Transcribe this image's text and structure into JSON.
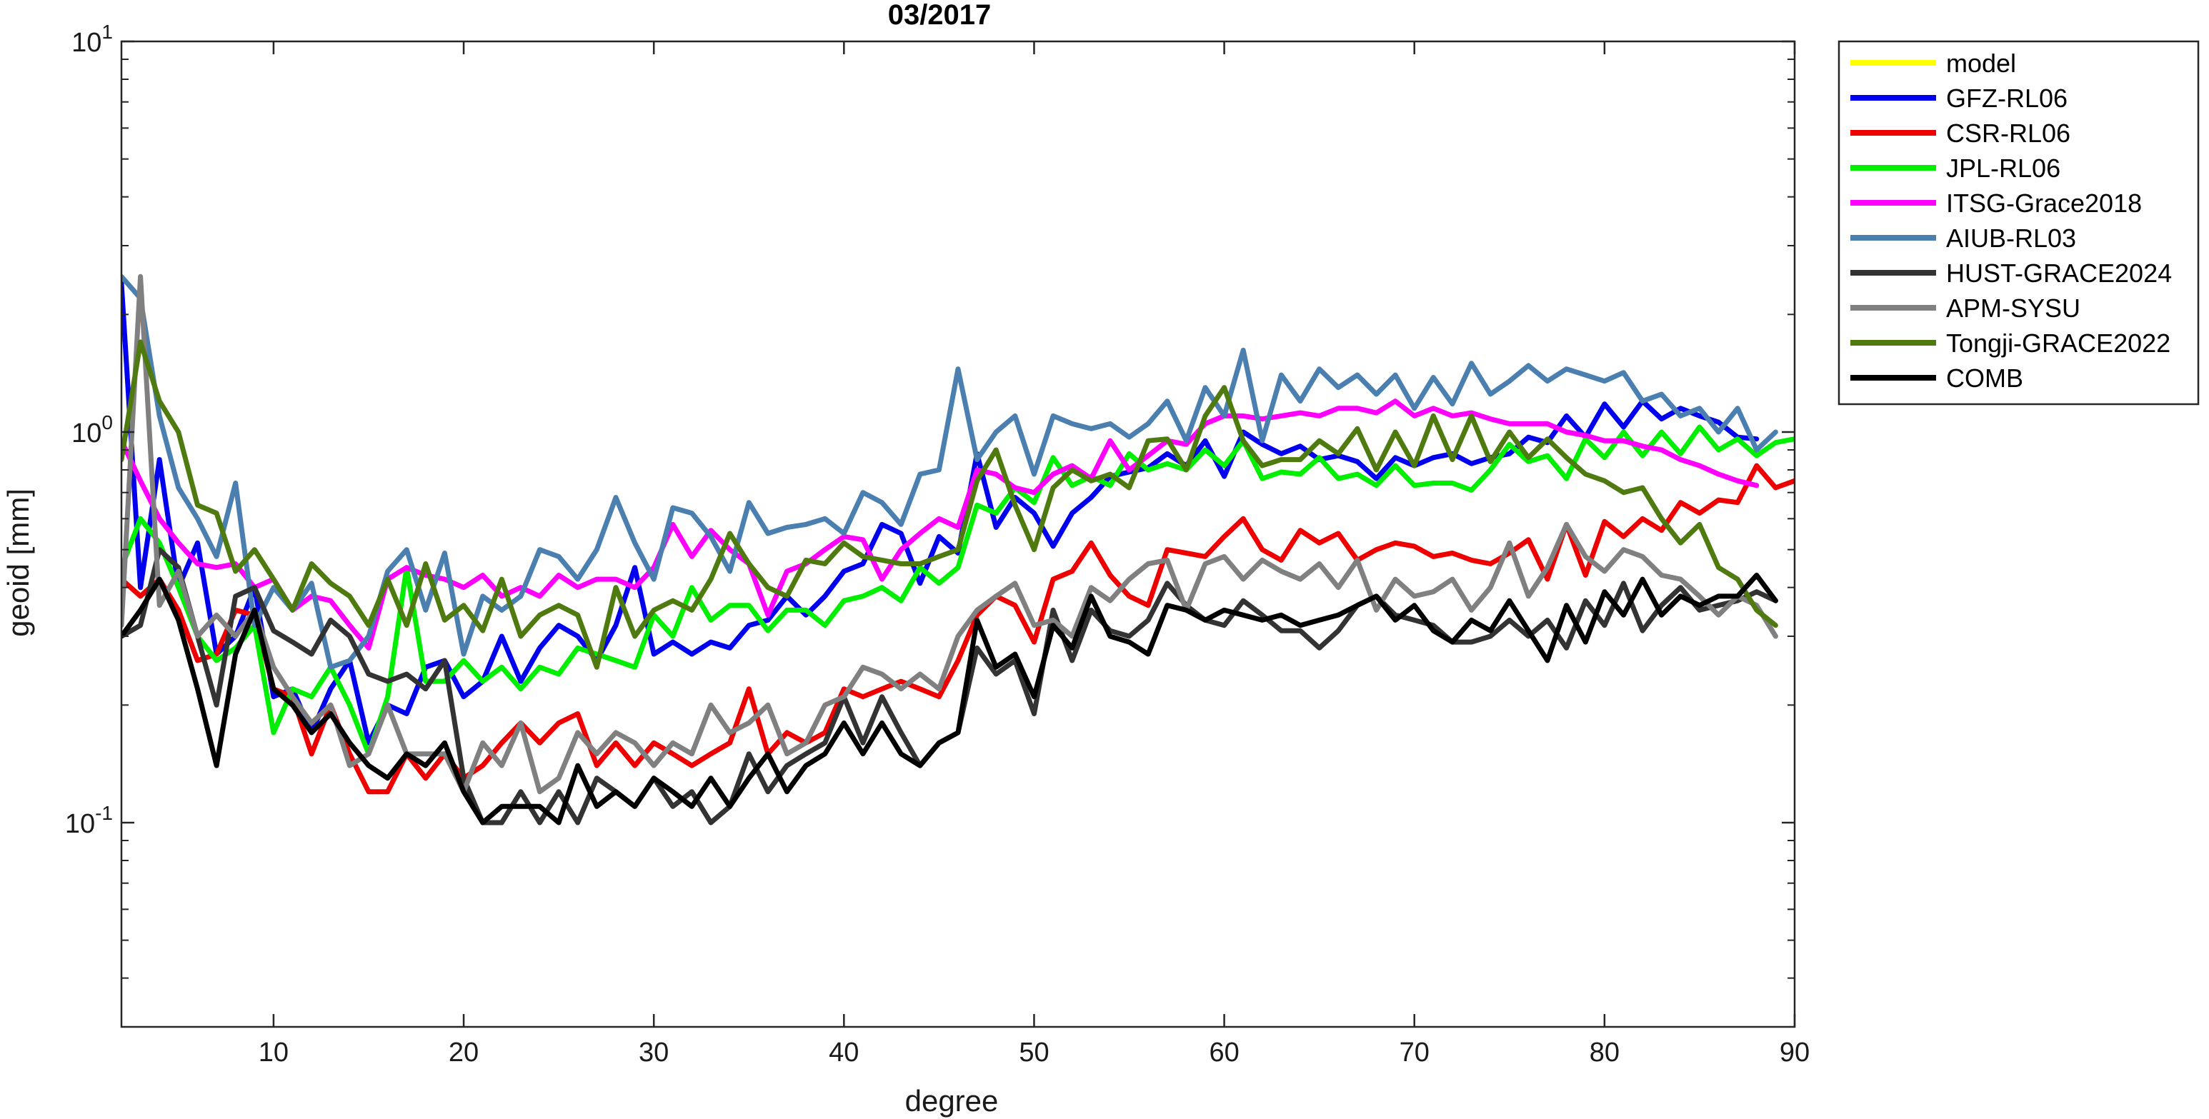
{
  "chart_data": {
    "type": "line",
    "title": "03/2017",
    "xlabel": "degree",
    "ylabel": "geoid [mm]",
    "xlim": [
      2,
      90
    ],
    "ylim": [
      0.03,
      10
    ],
    "yscale": "log",
    "x_ticks": [
      10,
      20,
      30,
      40,
      50,
      60,
      70,
      80,
      90
    ],
    "x_tick_labels": [
      "10",
      "20",
      "30",
      "40",
      "50",
      "60",
      "70",
      "80",
      "90"
    ],
    "y_ticks": [
      {
        "value": 10,
        "base": "10",
        "exp": "1"
      },
      {
        "value": 1,
        "base": "10",
        "exp": "0"
      },
      {
        "value": 0.1,
        "base": "10",
        "exp": "-1"
      }
    ],
    "grid": false,
    "legend_position": "outside-top-right",
    "series": [
      {
        "name": "model",
        "color": "#ffff00",
        "y": []
      },
      {
        "name": "GFZ-RL06",
        "color": "#0000ee",
        "y": [
          2.4,
          0.4,
          0.85,
          0.4,
          0.52,
          0.27,
          0.3,
          0.4,
          0.21,
          0.22,
          0.17,
          0.22,
          0.26,
          0.16,
          0.2,
          0.19,
          0.25,
          0.26,
          0.21,
          0.23,
          0.3,
          0.23,
          0.28,
          0.32,
          0.3,
          0.26,
          0.32,
          0.45,
          0.27,
          0.29,
          0.27,
          0.29,
          0.28,
          0.32,
          0.33,
          0.38,
          0.34,
          0.38,
          0.44,
          0.46,
          0.58,
          0.55,
          0.41,
          0.54,
          0.49,
          0.88,
          0.57,
          0.68,
          0.62,
          0.51,
          0.62,
          0.68,
          0.77,
          0.79,
          0.81,
          0.88,
          0.82,
          0.95,
          0.77,
          1.0,
          0.93,
          0.88,
          0.92,
          0.85,
          0.87,
          0.84,
          0.76,
          0.86,
          0.82,
          0.86,
          0.88,
          0.83,
          0.86,
          0.88,
          0.97,
          0.94,
          1.1,
          0.97,
          1.18,
          1.03,
          1.2,
          1.08,
          1.15,
          1.1,
          1.06,
          0.97,
          0.96
        ]
      },
      {
        "name": "CSR-RL06",
        "color": "#ee0000",
        "y": [
          0.42,
          0.38,
          0.42,
          0.35,
          0.26,
          0.27,
          0.35,
          0.34,
          0.22,
          0.21,
          0.15,
          0.2,
          0.15,
          0.12,
          0.12,
          0.15,
          0.13,
          0.15,
          0.13,
          0.14,
          0.16,
          0.18,
          0.16,
          0.18,
          0.19,
          0.14,
          0.16,
          0.14,
          0.16,
          0.15,
          0.14,
          0.15,
          0.16,
          0.22,
          0.15,
          0.17,
          0.16,
          0.17,
          0.22,
          0.21,
          0.22,
          0.23,
          0.22,
          0.21,
          0.26,
          0.34,
          0.38,
          0.36,
          0.29,
          0.42,
          0.44,
          0.52,
          0.43,
          0.38,
          0.36,
          0.5,
          0.49,
          0.48,
          0.54,
          0.6,
          0.5,
          0.47,
          0.56,
          0.52,
          0.55,
          0.47,
          0.5,
          0.52,
          0.51,
          0.48,
          0.49,
          0.47,
          0.46,
          0.49,
          0.53,
          0.42,
          0.58,
          0.43,
          0.59,
          0.54,
          0.6,
          0.56,
          0.66,
          0.62,
          0.67,
          0.66,
          0.82,
          0.72,
          0.75
        ]
      },
      {
        "name": "JPL-RL06",
        "color": "#00ee00",
        "y": [
          0.45,
          0.6,
          0.52,
          0.4,
          0.3,
          0.26,
          0.28,
          0.32,
          0.17,
          0.22,
          0.21,
          0.25,
          0.2,
          0.15,
          0.21,
          0.45,
          0.23,
          0.23,
          0.26,
          0.23,
          0.25,
          0.22,
          0.25,
          0.24,
          0.28,
          0.27,
          0.26,
          0.25,
          0.34,
          0.3,
          0.4,
          0.33,
          0.36,
          0.36,
          0.31,
          0.35,
          0.35,
          0.32,
          0.37,
          0.38,
          0.4,
          0.37,
          0.45,
          0.41,
          0.45,
          0.65,
          0.62,
          0.72,
          0.66,
          0.86,
          0.73,
          0.77,
          0.73,
          0.88,
          0.8,
          0.83,
          0.8,
          0.9,
          0.82,
          0.95,
          0.76,
          0.79,
          0.78,
          0.86,
          0.76,
          0.78,
          0.73,
          0.82,
          0.73,
          0.74,
          0.74,
          0.71,
          0.8,
          0.93,
          0.84,
          0.87,
          0.76,
          0.96,
          0.86,
          1.0,
          0.87,
          1.0,
          0.88,
          1.03,
          0.9,
          0.96,
          0.87,
          0.94,
          0.96
        ]
      },
      {
        "name": "ITSG-Grace2018",
        "color": "#ff00ff",
        "y": [
          0.95,
          0.75,
          0.6,
          0.52,
          0.46,
          0.45,
          0.46,
          0.4,
          0.42,
          0.35,
          0.38,
          0.37,
          0.32,
          0.28,
          0.42,
          0.45,
          0.43,
          0.42,
          0.4,
          0.43,
          0.38,
          0.4,
          0.38,
          0.43,
          0.4,
          0.42,
          0.42,
          0.4,
          0.45,
          0.58,
          0.48,
          0.56,
          0.5,
          0.46,
          0.34,
          0.44,
          0.46,
          0.5,
          0.54,
          0.53,
          0.42,
          0.5,
          0.55,
          0.6,
          0.57,
          0.8,
          0.78,
          0.72,
          0.7,
          0.78,
          0.82,
          0.76,
          0.95,
          0.8,
          0.87,
          0.95,
          0.93,
          1.05,
          1.1,
          1.1,
          1.08,
          1.1,
          1.12,
          1.1,
          1.15,
          1.15,
          1.12,
          1.2,
          1.1,
          1.15,
          1.1,
          1.12,
          1.08,
          1.05,
          1.05,
          1.05,
          1.0,
          0.98,
          0.95,
          0.95,
          0.92,
          0.9,
          0.85,
          0.82,
          0.78,
          0.75,
          0.73
        ]
      },
      {
        "name": "AIUB-RL03",
        "color": "#4a7fb0",
        "y": [
          2.5,
          2.2,
          1.1,
          0.72,
          0.6,
          0.48,
          0.74,
          0.32,
          0.4,
          0.35,
          0.41,
          0.25,
          0.26,
          0.3,
          0.44,
          0.5,
          0.35,
          0.49,
          0.27,
          0.38,
          0.35,
          0.38,
          0.5,
          0.48,
          0.42,
          0.5,
          0.68,
          0.52,
          0.42,
          0.64,
          0.62,
          0.54,
          0.44,
          0.66,
          0.55,
          0.57,
          0.58,
          0.6,
          0.55,
          0.7,
          0.66,
          0.58,
          0.78,
          0.8,
          1.45,
          0.85,
          1.0,
          1.1,
          0.78,
          1.1,
          1.05,
          1.02,
          1.05,
          0.97,
          1.05,
          1.2,
          0.95,
          1.3,
          1.1,
          1.62,
          0.95,
          1.4,
          1.2,
          1.45,
          1.3,
          1.4,
          1.25,
          1.4,
          1.15,
          1.38,
          1.18,
          1.5,
          1.25,
          1.35,
          1.48,
          1.35,
          1.45,
          1.4,
          1.35,
          1.42,
          1.2,
          1.25,
          1.1,
          1.15,
          1.0,
          1.15,
          0.9,
          1.0
        ]
      },
      {
        "name": "HUST-GRACE2024",
        "color": "#333333",
        "y": [
          0.3,
          0.32,
          0.5,
          0.45,
          0.3,
          0.2,
          0.38,
          0.4,
          0.31,
          0.29,
          0.27,
          0.33,
          0.3,
          0.24,
          0.23,
          0.24,
          0.22,
          0.26,
          0.13,
          0.1,
          0.1,
          0.12,
          0.1,
          0.12,
          0.1,
          0.13,
          0.12,
          0.11,
          0.13,
          0.11,
          0.12,
          0.1,
          0.11,
          0.15,
          0.12,
          0.14,
          0.15,
          0.16,
          0.21,
          0.16,
          0.21,
          0.17,
          0.14,
          0.16,
          0.17,
          0.28,
          0.24,
          0.26,
          0.19,
          0.35,
          0.26,
          0.35,
          0.31,
          0.3,
          0.33,
          0.41,
          0.36,
          0.33,
          0.32,
          0.37,
          0.34,
          0.31,
          0.31,
          0.28,
          0.31,
          0.36,
          0.38,
          0.34,
          0.33,
          0.32,
          0.29,
          0.29,
          0.3,
          0.33,
          0.3,
          0.33,
          0.28,
          0.37,
          0.32,
          0.41,
          0.31,
          0.36,
          0.4,
          0.35,
          0.36,
          0.37,
          0.39,
          0.37
        ]
      },
      {
        "name": "APM-SYSU",
        "color": "#808080",
        "y": [
          0.32,
          2.5,
          0.36,
          0.44,
          0.3,
          0.34,
          0.3,
          0.35,
          0.25,
          0.21,
          0.18,
          0.2,
          0.14,
          0.15,
          0.2,
          0.15,
          0.15,
          0.15,
          0.12,
          0.16,
          0.14,
          0.18,
          0.12,
          0.13,
          0.17,
          0.15,
          0.17,
          0.16,
          0.14,
          0.16,
          0.15,
          0.2,
          0.17,
          0.18,
          0.2,
          0.15,
          0.16,
          0.2,
          0.21,
          0.25,
          0.24,
          0.22,
          0.24,
          0.22,
          0.3,
          0.35,
          0.38,
          0.41,
          0.32,
          0.33,
          0.3,
          0.4,
          0.37,
          0.42,
          0.46,
          0.47,
          0.35,
          0.46,
          0.48,
          0.42,
          0.47,
          0.44,
          0.42,
          0.46,
          0.4,
          0.47,
          0.35,
          0.42,
          0.38,
          0.39,
          0.42,
          0.35,
          0.4,
          0.52,
          0.38,
          0.45,
          0.58,
          0.48,
          0.44,
          0.5,
          0.48,
          0.43,
          0.42,
          0.38,
          0.34,
          0.38,
          0.36,
          0.3
        ]
      },
      {
        "name": "Tongji-GRACE2022",
        "color": "#4f7a10",
        "y": [
          0.85,
          1.7,
          1.2,
          1.0,
          0.65,
          0.62,
          0.44,
          0.5,
          0.42,
          0.35,
          0.46,
          0.41,
          0.38,
          0.32,
          0.42,
          0.32,
          0.46,
          0.33,
          0.36,
          0.31,
          0.42,
          0.3,
          0.34,
          0.36,
          0.34,
          0.25,
          0.4,
          0.3,
          0.35,
          0.37,
          0.35,
          0.42,
          0.55,
          0.46,
          0.4,
          0.38,
          0.47,
          0.46,
          0.52,
          0.48,
          0.47,
          0.46,
          0.46,
          0.48,
          0.5,
          0.75,
          0.9,
          0.65,
          0.5,
          0.72,
          0.8,
          0.75,
          0.78,
          0.72,
          0.95,
          0.96,
          0.8,
          1.1,
          1.3,
          0.95,
          0.82,
          0.85,
          0.85,
          0.95,
          0.88,
          1.02,
          0.8,
          1.0,
          0.82,
          1.1,
          0.85,
          1.1,
          0.84,
          1.0,
          0.86,
          0.96,
          0.86,
          0.78,
          0.75,
          0.7,
          0.72,
          0.6,
          0.52,
          0.58,
          0.45,
          0.42,
          0.35,
          0.32
        ]
      },
      {
        "name": "COMB",
        "color": "#000000",
        "y": [
          0.3,
          0.35,
          0.42,
          0.33,
          0.22,
          0.14,
          0.27,
          0.35,
          0.22,
          0.2,
          0.17,
          0.19,
          0.16,
          0.14,
          0.13,
          0.15,
          0.14,
          0.16,
          0.12,
          0.1,
          0.11,
          0.11,
          0.11,
          0.1,
          0.14,
          0.11,
          0.12,
          0.11,
          0.13,
          0.12,
          0.11,
          0.13,
          0.11,
          0.13,
          0.15,
          0.12,
          0.14,
          0.15,
          0.18,
          0.15,
          0.18,
          0.15,
          0.14,
          0.16,
          0.17,
          0.33,
          0.25,
          0.27,
          0.21,
          0.32,
          0.28,
          0.38,
          0.3,
          0.29,
          0.27,
          0.36,
          0.35,
          0.33,
          0.35,
          0.34,
          0.33,
          0.34,
          0.32,
          0.33,
          0.34,
          0.36,
          0.38,
          0.33,
          0.36,
          0.31,
          0.29,
          0.33,
          0.31,
          0.37,
          0.31,
          0.26,
          0.36,
          0.29,
          0.39,
          0.34,
          0.42,
          0.34,
          0.38,
          0.36,
          0.38,
          0.38,
          0.43,
          0.37
        ]
      }
    ]
  }
}
